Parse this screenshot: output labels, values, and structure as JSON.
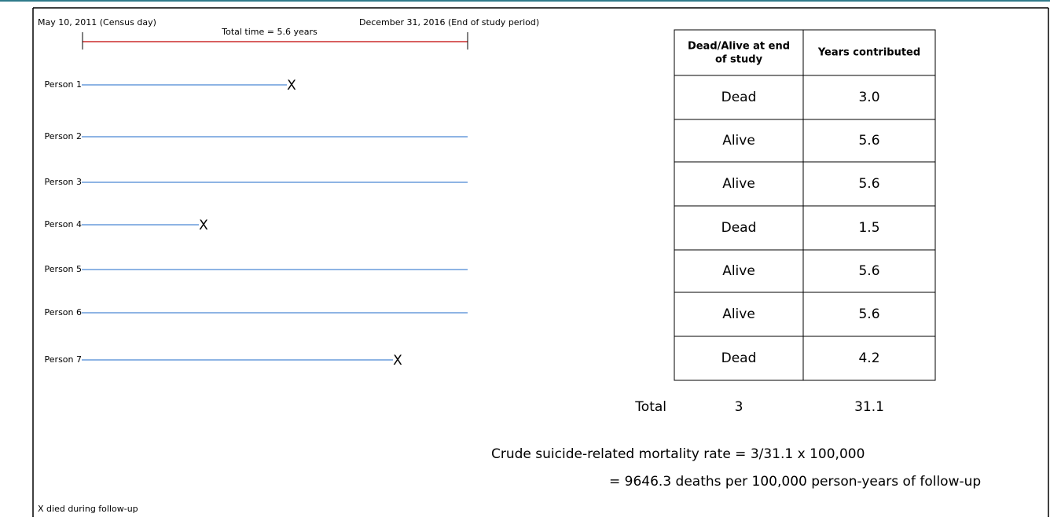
{
  "timeline": {
    "start_label": "May 10, 2011 (Census day)",
    "total_label": "Total time = 5.6 years",
    "end_label": "December 31, 2016 (End of study period)"
  },
  "persons": [
    {
      "label": "Person 1",
      "marker": "X"
    },
    {
      "label": "Person 2"
    },
    {
      "label": "Person 3"
    },
    {
      "label": "Person 4",
      "marker": "X"
    },
    {
      "label": "Person 5"
    },
    {
      "label": "Person 6"
    },
    {
      "label": "Person 7",
      "marker": "X"
    }
  ],
  "table": {
    "headers": [
      [
        "Dead/Alive at end",
        "of study"
      ],
      "Years contributed"
    ],
    "rows": [
      [
        "Dead",
        "3.0"
      ],
      [
        "Alive",
        "5.6"
      ],
      [
        "Alive",
        "5.6"
      ],
      [
        "Dead",
        "1.5"
      ],
      [
        "Alive",
        "5.6"
      ],
      [
        "Alive",
        "5.6"
      ],
      [
        "Dead",
        "4.2"
      ]
    ],
    "total": {
      "label": "Total",
      "values": [
        "3",
        "31.1"
      ]
    }
  },
  "formula": [
    "Crude suicide-related mortality rate = 3/31.1 x 100,000",
    "= 9646.3 deaths per 100,000 person-years of follow-up"
  ],
  "legend": "X died during follow-up"
}
